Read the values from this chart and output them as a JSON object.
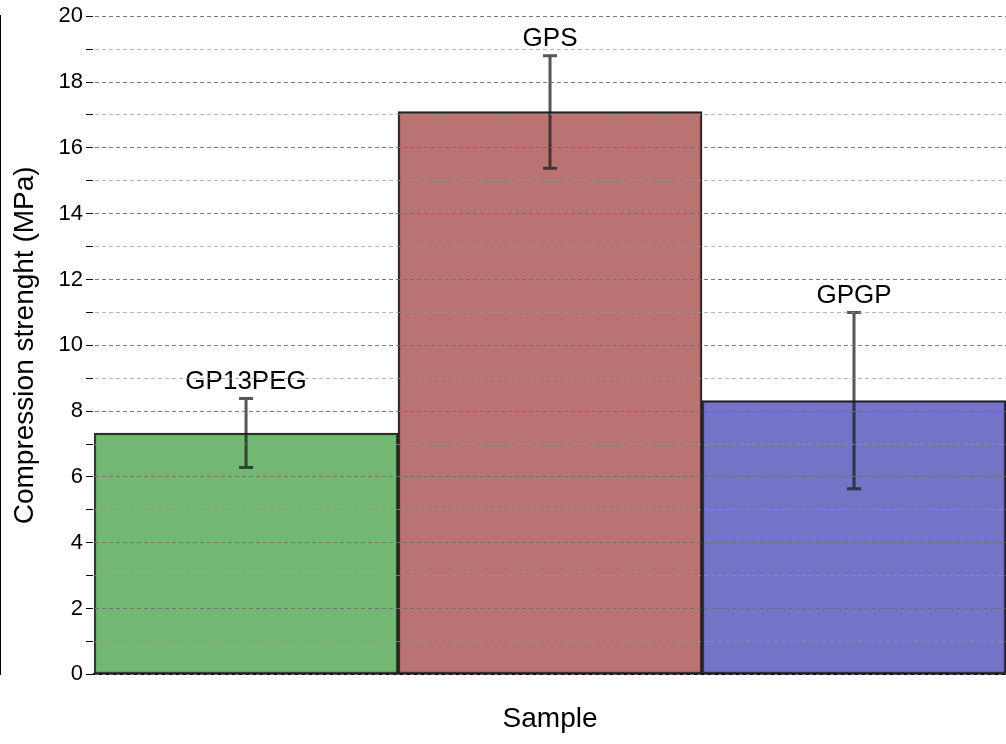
{
  "chart_data": {
    "type": "bar",
    "xlabel": "Sample",
    "ylabel": "Compression strenght (MPa)",
    "categories": [
      "GP13PEG",
      "GPS",
      "GPGP"
    ],
    "values": [
      7.33,
      17.1,
      8.32
    ],
    "colors": [
      "#5aad5a",
      "#ad5a5a",
      "#5a5abd"
    ],
    "errors": [
      [
        6.29,
        8.38
      ],
      [
        15.38,
        18.8
      ],
      [
        5.64,
        11.0
      ]
    ],
    "ylim": [
      0,
      20
    ],
    "yticks": [
      0,
      {
        "value": 1,
        "label": null
      },
      2,
      {
        "value": 3,
        "label": null
      },
      4,
      {
        "value": 5,
        "label": null
      },
      6,
      {
        "value": 7,
        "label": null
      },
      8,
      {
        "value": 9,
        "label": null
      },
      10,
      {
        "value": 11,
        "label": null
      },
      12,
      {
        "value": 13,
        "label": null
      },
      14,
      {
        "value": 15,
        "label": null
      },
      16,
      {
        "value": 17,
        "label": null
      },
      18,
      {
        "value": 19,
        "label": null
      },
      20
    ],
    "grid": "y",
    "tick_labels": "y",
    "legend": false
  }
}
